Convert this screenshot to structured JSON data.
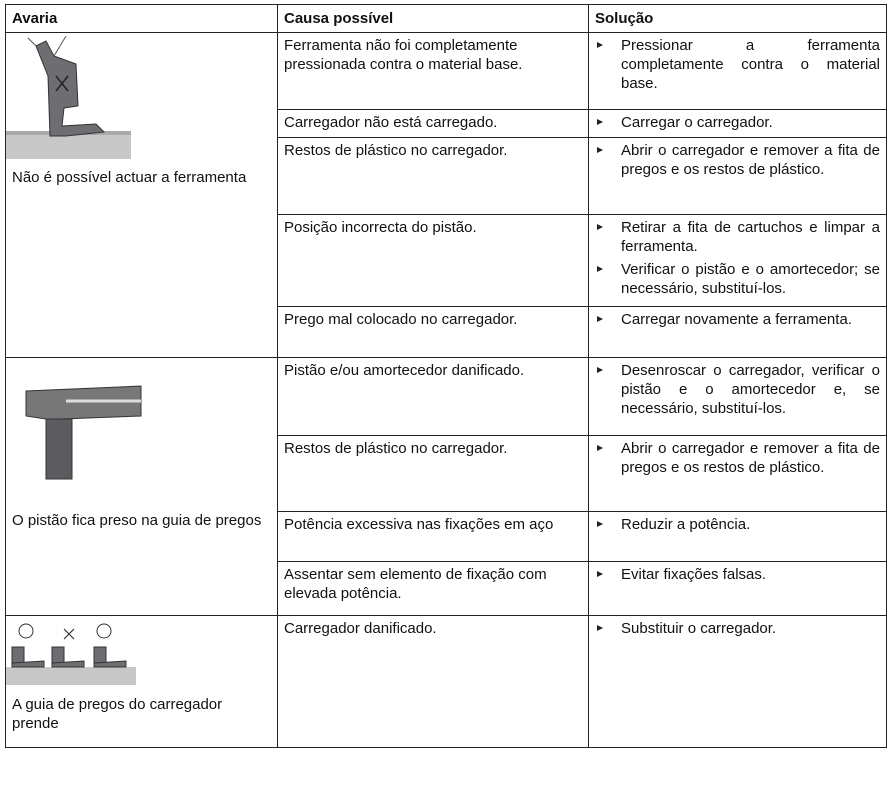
{
  "header": {
    "columns": [
      "Avaria",
      "Causa possível",
      "Solução"
    ]
  },
  "groups": [
    {
      "avaria": "Não é possível actuar a ferramenta",
      "rows": [
        {
          "causa": "Ferramenta não foi completamente pressionada contra o material base.",
          "solucoes": [
            "Pressionar a ferramenta completamente contra o material base."
          ]
        },
        {
          "causa": "Carregador não está carregado.",
          "solucoes": [
            "Carregar o carregador."
          ]
        },
        {
          "causa": "Restos de plástico no carregador.",
          "solucoes": [
            "Abrir o carregador e remover a fita de pregos e os restos de plástico."
          ]
        },
        {
          "causa": "Posição incorrecta do pistão.",
          "solucoes": [
            "Retirar a fita de cartuchos e limpar a ferramenta.",
            "Verificar o pistão e o amortecedor; se necessário, substituí-los."
          ]
        },
        {
          "causa": "Prego mal colocado no carregador.",
          "solucoes": [
            "Carregar novamente a ferramenta."
          ]
        }
      ]
    },
    {
      "avaria": "O pistão fica preso na guia de pregos",
      "rows": [
        {
          "causa": "Pistão e/ou amortecedor danificado.",
          "solucoes": [
            "Desenroscar o carregador, verificar o pistão e o amortecedor e, se necessário, substituí-los."
          ]
        },
        {
          "causa": "Restos de plástico no carregador.",
          "solucoes": [
            "Abrir o carregador e remover a fita de pregos e os restos de plástico."
          ]
        },
        {
          "causa": "Potência excessiva nas fixações em aço",
          "solucoes": [
            "Reduzir a potência."
          ]
        },
        {
          "causa": "Assentar sem elemento de fixação com elevada potência.",
          "solucoes": [
            "Evitar fixações falsas."
          ]
        }
      ]
    },
    {
      "avaria": "A guia de pregos do carregador prende",
      "rows": [
        {
          "causa": "Carregador danificado.",
          "solucoes": [
            "Substituir o carregador."
          ]
        }
      ]
    }
  ]
}
